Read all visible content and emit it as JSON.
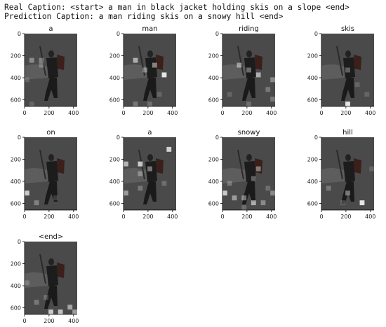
{
  "captions": {
    "real": "Real Caption: <start> a man in black jacket holding skis on a slope <end>",
    "prediction": "Prediction Caption: a man riding skis on a snowy hill <end>"
  },
  "axis": {
    "yticks": [
      "0",
      "200",
      "400",
      "600"
    ],
    "xticks": [
      "0",
      "200",
      "400"
    ]
  },
  "panels": [
    {
      "word": "a",
      "highlights": [
        [
          11,
          1,
          0.85
        ],
        [
          1,
          5,
          0.35
        ],
        [
          3,
          5,
          0.3
        ],
        [
          3,
          6,
          0.25
        ],
        [
          0,
          9,
          0.15
        ],
        [
          1,
          14,
          0.15
        ]
      ]
    },
    {
      "word": "man",
      "highlights": [
        [
          2,
          5,
          0.55
        ],
        [
          6,
          6,
          0.45
        ],
        [
          4,
          7,
          0.35
        ],
        [
          8,
          8,
          0.85
        ],
        [
          2,
          14,
          0.25
        ],
        [
          5,
          14,
          0.2
        ],
        [
          7,
          12,
          0.15
        ]
      ]
    },
    {
      "word": "riding",
      "highlights": [
        [
          3,
          6,
          0.45
        ],
        [
          5,
          7,
          0.35
        ],
        [
          7,
          8,
          0.55
        ],
        [
          10,
          9,
          0.35
        ],
        [
          9,
          11,
          0.25
        ],
        [
          10,
          13,
          0.25
        ],
        [
          5,
          14,
          0.2
        ],
        [
          1,
          12,
          0.15
        ]
      ]
    },
    {
      "word": "skis",
      "highlights": [
        [
          5,
          7,
          0.3
        ],
        [
          5,
          14,
          0.85
        ],
        [
          7,
          10,
          0.15
        ],
        [
          9,
          12,
          0.15
        ]
      ]
    },
    {
      "word": "on",
      "highlights": [
        [
          0,
          11,
          0.7
        ],
        [
          2,
          13,
          0.3
        ],
        [
          6,
          12,
          0.15
        ]
      ]
    },
    {
      "word": "a",
      "highlights": [
        [
          9,
          2,
          0.75
        ],
        [
          0,
          5,
          0.6
        ],
        [
          3,
          5,
          0.7
        ],
        [
          5,
          6,
          0.4
        ],
        [
          3,
          7,
          0.3
        ],
        [
          0,
          11,
          0.45
        ],
        [
          3,
          10,
          0.25
        ],
        [
          8,
          9,
          0.2
        ]
      ]
    },
    {
      "word": "snowy",
      "highlights": [
        [
          7,
          6,
          0.4
        ],
        [
          6,
          8,
          0.3
        ],
        [
          0,
          11,
          0.7
        ],
        [
          2,
          12,
          0.45
        ],
        [
          4,
          12,
          0.4
        ],
        [
          6,
          13,
          0.55
        ],
        [
          8,
          13,
          0.35
        ],
        [
          10,
          11,
          0.35
        ],
        [
          4,
          14,
          0.2
        ],
        [
          1,
          9,
          0.25
        ],
        [
          9,
          10,
          0.2
        ]
      ]
    },
    {
      "word": "hill",
      "highlights": [
        [
          1,
          10,
          0.25
        ],
        [
          5,
          11,
          0.4
        ],
        [
          8,
          13,
          0.85
        ],
        [
          4,
          13,
          0.2
        ],
        [
          10,
          6,
          0.15
        ]
      ]
    },
    {
      "word": "<end>",
      "highlights": [
        [
          0,
          8,
          0.2
        ],
        [
          2,
          12,
          0.25
        ],
        [
          5,
          14,
          0.7
        ],
        [
          7,
          14,
          0.65
        ],
        [
          9,
          13,
          0.5
        ],
        [
          10,
          14,
          0.45
        ],
        [
          4,
          11,
          0.2
        ]
      ]
    }
  ]
}
